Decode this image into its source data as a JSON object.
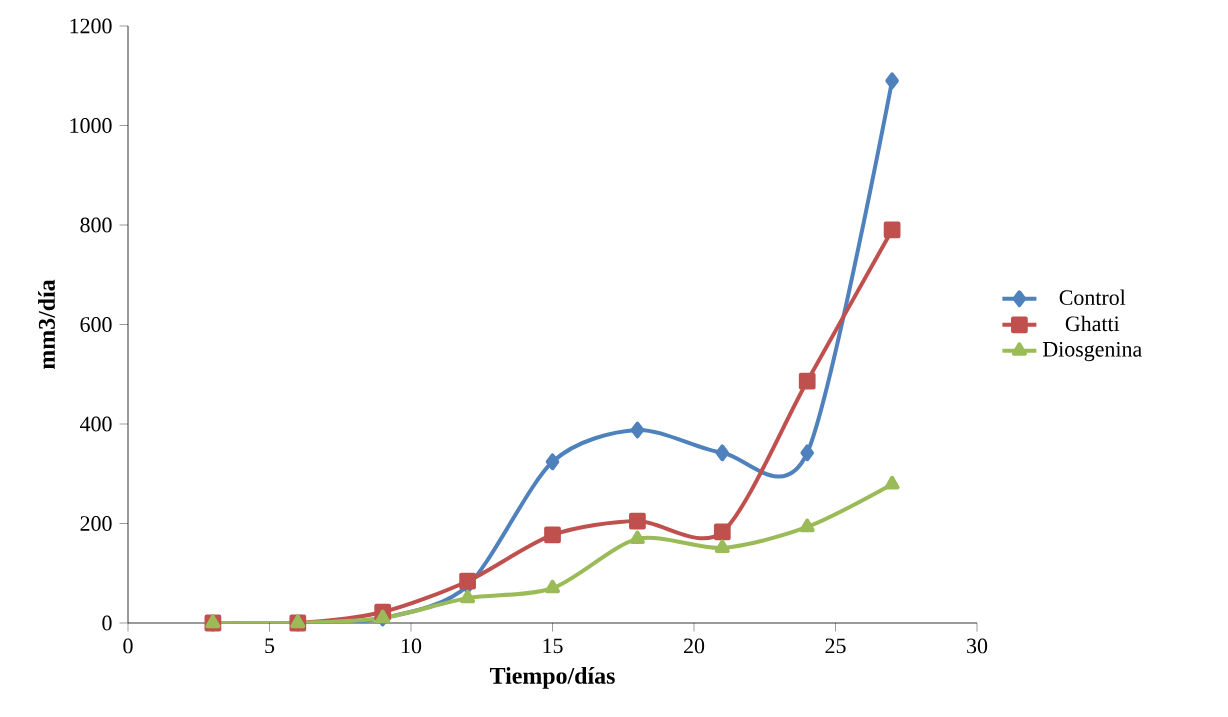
{
  "chart_data": {
    "type": "line",
    "xlabel": "Tiempo/días",
    "ylabel": "mm3/día",
    "xlim": [
      0,
      30
    ],
    "xticks": [
      0,
      5,
      10,
      15,
      20,
      25,
      30
    ],
    "ylim": [
      0,
      1200
    ],
    "yticks": [
      0,
      200,
      400,
      600,
      800,
      1000,
      1200
    ],
    "grid": false,
    "legend": "right",
    "line_style": "solid",
    "x": [
      3,
      6,
      9,
      12,
      15,
      18,
      21,
      24,
      27
    ],
    "series": [
      {
        "name": "Control",
        "color": "#4f81bd",
        "marker": "diamond",
        "values": [
          0,
          0,
          10,
          75,
          324,
          388,
          342,
          342,
          1090
        ]
      },
      {
        "name": "Ghatti",
        "color": "#c0504d",
        "marker": "square",
        "values": [
          0,
          0,
          22,
          84,
          177,
          205,
          183,
          486,
          790
        ]
      },
      {
        "name": "Diosgenina",
        "color": "#9bbb59",
        "marker": "triangle",
        "values": [
          0,
          0,
          10,
          50,
          70,
          169,
          151,
          193,
          279
        ]
      }
    ]
  }
}
